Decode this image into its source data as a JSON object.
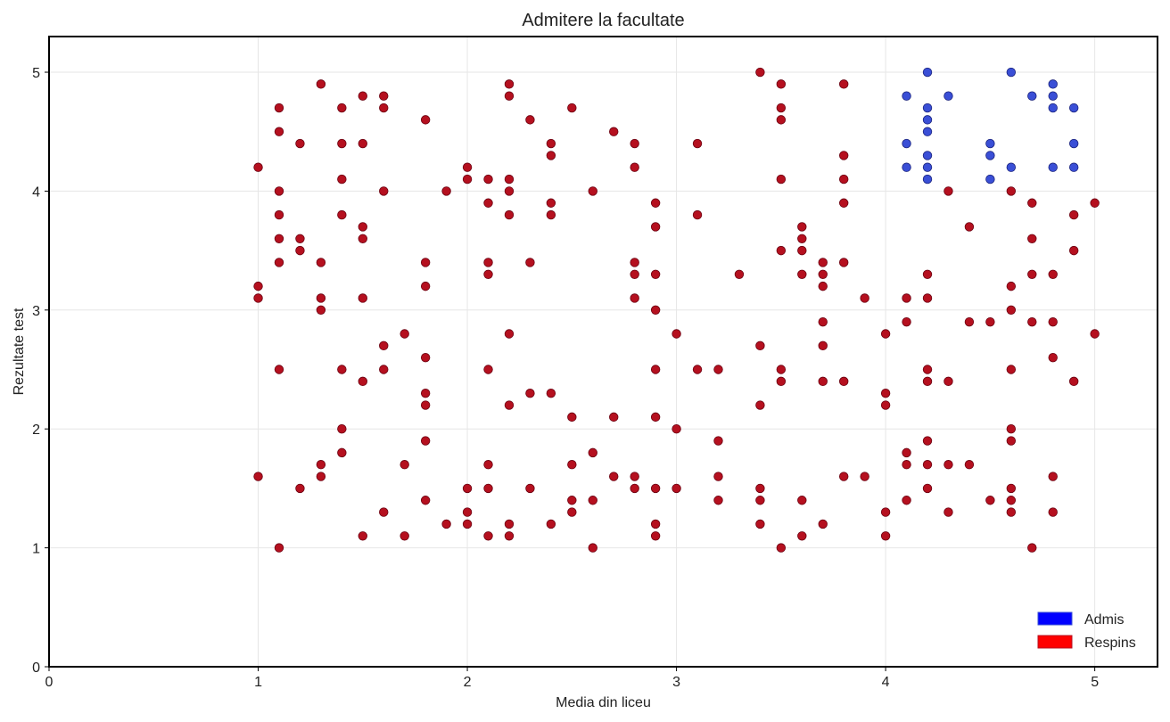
{
  "chart_data": {
    "type": "scatter",
    "title": "Admitere la facultate",
    "xlabel": "Media din liceu",
    "ylabel": "Rezultate test",
    "xlim": [
      0,
      5.3
    ],
    "ylim": [
      0,
      5.3
    ],
    "xticks": [
      0,
      1,
      2,
      3,
      4,
      5
    ],
    "yticks": [
      0,
      1,
      2,
      3,
      4,
      5
    ],
    "grid": true,
    "legend_position": "bottom-right",
    "series": [
      {
        "name": "Admis",
        "color": "#3a4fd6",
        "legend_color": "#0000ff",
        "points": [
          [
            4.1,
            4.8
          ],
          [
            4.1,
            4.4
          ],
          [
            4.1,
            4.2
          ],
          [
            4.2,
            5.0
          ],
          [
            4.2,
            4.7
          ],
          [
            4.2,
            4.6
          ],
          [
            4.2,
            4.5
          ],
          [
            4.2,
            4.3
          ],
          [
            4.2,
            4.2
          ],
          [
            4.2,
            4.1
          ],
          [
            4.3,
            4.8
          ],
          [
            4.5,
            4.4
          ],
          [
            4.5,
            4.3
          ],
          [
            4.5,
            4.1
          ],
          [
            4.6,
            5.0
          ],
          [
            4.6,
            4.2
          ],
          [
            4.7,
            4.8
          ],
          [
            4.8,
            4.9
          ],
          [
            4.8,
            4.8
          ],
          [
            4.8,
            4.7
          ],
          [
            4.8,
            4.2
          ],
          [
            4.9,
            4.7
          ],
          [
            4.9,
            4.4
          ],
          [
            4.9,
            4.2
          ]
        ]
      },
      {
        "name": "Respins",
        "color": "#b5101f",
        "legend_color": "#ff0000",
        "points": [
          [
            1.0,
            4.2
          ],
          [
            1.0,
            3.2
          ],
          [
            1.0,
            3.1
          ],
          [
            1.0,
            1.6
          ],
          [
            1.1,
            4.7
          ],
          [
            1.1,
            4.5
          ],
          [
            1.1,
            4.0
          ],
          [
            1.1,
            3.8
          ],
          [
            1.1,
            3.6
          ],
          [
            1.1,
            3.4
          ],
          [
            1.1,
            2.5
          ],
          [
            1.1,
            1.0
          ],
          [
            1.2,
            4.4
          ],
          [
            1.2,
            3.6
          ],
          [
            1.2,
            3.5
          ],
          [
            1.2,
            1.5
          ],
          [
            1.3,
            4.9
          ],
          [
            1.3,
            3.4
          ],
          [
            1.3,
            3.1
          ],
          [
            1.3,
            3.0
          ],
          [
            1.3,
            1.7
          ],
          [
            1.3,
            1.6
          ],
          [
            1.4,
            4.7
          ],
          [
            1.4,
            4.4
          ],
          [
            1.4,
            4.1
          ],
          [
            1.4,
            3.8
          ],
          [
            1.4,
            2.5
          ],
          [
            1.4,
            2.0
          ],
          [
            1.4,
            1.8
          ],
          [
            1.5,
            4.8
          ],
          [
            1.5,
            4.4
          ],
          [
            1.5,
            3.7
          ],
          [
            1.5,
            3.6
          ],
          [
            1.5,
            3.1
          ],
          [
            1.5,
            2.4
          ],
          [
            1.5,
            1.1
          ],
          [
            1.6,
            4.8
          ],
          [
            1.6,
            4.7
          ],
          [
            1.6,
            4.0
          ],
          [
            1.6,
            2.7
          ],
          [
            1.6,
            2.5
          ],
          [
            1.6,
            1.3
          ],
          [
            1.7,
            2.8
          ],
          [
            1.7,
            1.7
          ],
          [
            1.7,
            1.1
          ],
          [
            1.8,
            4.6
          ],
          [
            1.8,
            3.4
          ],
          [
            1.8,
            3.2
          ],
          [
            1.8,
            2.6
          ],
          [
            1.8,
            2.3
          ],
          [
            1.8,
            2.2
          ],
          [
            1.8,
            1.9
          ],
          [
            1.8,
            1.4
          ],
          [
            1.9,
            4.0
          ],
          [
            1.9,
            1.2
          ],
          [
            2.0,
            4.2
          ],
          [
            2.0,
            4.1
          ],
          [
            2.0,
            1.5
          ],
          [
            2.0,
            1.3
          ],
          [
            2.0,
            1.2
          ],
          [
            2.1,
            4.1
          ],
          [
            2.1,
            3.9
          ],
          [
            2.1,
            3.4
          ],
          [
            2.1,
            3.3
          ],
          [
            2.1,
            2.5
          ],
          [
            2.1,
            1.7
          ],
          [
            2.1,
            1.5
          ],
          [
            2.1,
            1.1
          ],
          [
            2.2,
            4.9
          ],
          [
            2.2,
            4.8
          ],
          [
            2.2,
            4.1
          ],
          [
            2.2,
            4.0
          ],
          [
            2.2,
            3.8
          ],
          [
            2.2,
            2.8
          ],
          [
            2.2,
            2.2
          ],
          [
            2.2,
            1.2
          ],
          [
            2.2,
            1.1
          ],
          [
            2.3,
            4.6
          ],
          [
            2.3,
            3.4
          ],
          [
            2.3,
            2.3
          ],
          [
            2.3,
            1.5
          ],
          [
            2.4,
            4.4
          ],
          [
            2.4,
            4.3
          ],
          [
            2.4,
            3.9
          ],
          [
            2.4,
            3.8
          ],
          [
            2.4,
            2.3
          ],
          [
            2.4,
            1.2
          ],
          [
            2.5,
            4.7
          ],
          [
            2.5,
            2.1
          ],
          [
            2.5,
            1.7
          ],
          [
            2.5,
            1.4
          ],
          [
            2.5,
            1.3
          ],
          [
            2.6,
            4.0
          ],
          [
            2.6,
            1.8
          ],
          [
            2.6,
            1.4
          ],
          [
            2.6,
            1.0
          ],
          [
            2.7,
            4.5
          ],
          [
            2.7,
            2.1
          ],
          [
            2.7,
            1.6
          ],
          [
            2.8,
            4.4
          ],
          [
            2.8,
            4.2
          ],
          [
            2.8,
            3.4
          ],
          [
            2.8,
            3.3
          ],
          [
            2.8,
            3.1
          ],
          [
            2.8,
            1.6
          ],
          [
            2.8,
            1.5
          ],
          [
            2.9,
            3.9
          ],
          [
            2.9,
            3.7
          ],
          [
            2.9,
            3.3
          ],
          [
            2.9,
            3.0
          ],
          [
            2.9,
            2.5
          ],
          [
            2.9,
            2.1
          ],
          [
            2.9,
            1.5
          ],
          [
            2.9,
            1.2
          ],
          [
            2.9,
            1.1
          ],
          [
            3.0,
            2.8
          ],
          [
            3.0,
            2.0
          ],
          [
            3.0,
            1.5
          ],
          [
            3.1,
            4.4
          ],
          [
            3.1,
            3.8
          ],
          [
            3.1,
            2.5
          ],
          [
            3.2,
            2.5
          ],
          [
            3.2,
            1.9
          ],
          [
            3.2,
            1.6
          ],
          [
            3.2,
            1.4
          ],
          [
            3.3,
            3.3
          ],
          [
            3.4,
            5.0
          ],
          [
            3.4,
            2.7
          ],
          [
            3.4,
            2.2
          ],
          [
            3.4,
            1.5
          ],
          [
            3.4,
            1.4
          ],
          [
            3.4,
            1.2
          ],
          [
            3.5,
            4.9
          ],
          [
            3.5,
            4.7
          ],
          [
            3.5,
            4.6
          ],
          [
            3.5,
            4.1
          ],
          [
            3.5,
            3.5
          ],
          [
            3.5,
            2.5
          ],
          [
            3.5,
            2.4
          ],
          [
            3.5,
            1.0
          ],
          [
            3.6,
            3.7
          ],
          [
            3.6,
            3.6
          ],
          [
            3.6,
            3.5
          ],
          [
            3.6,
            3.3
          ],
          [
            3.6,
            1.4
          ],
          [
            3.6,
            1.1
          ],
          [
            3.7,
            3.4
          ],
          [
            3.7,
            3.3
          ],
          [
            3.7,
            3.2
          ],
          [
            3.7,
            2.9
          ],
          [
            3.7,
            2.7
          ],
          [
            3.7,
            2.4
          ],
          [
            3.7,
            1.2
          ],
          [
            3.8,
            4.9
          ],
          [
            3.8,
            4.3
          ],
          [
            3.8,
            4.1
          ],
          [
            3.8,
            3.9
          ],
          [
            3.8,
            3.4
          ],
          [
            3.8,
            2.4
          ],
          [
            3.8,
            1.6
          ],
          [
            3.9,
            3.1
          ],
          [
            3.9,
            1.6
          ],
          [
            4.0,
            2.8
          ],
          [
            4.0,
            2.3
          ],
          [
            4.0,
            2.2
          ],
          [
            4.0,
            1.3
          ],
          [
            4.0,
            1.1
          ],
          [
            4.1,
            3.1
          ],
          [
            4.1,
            2.9
          ],
          [
            4.1,
            1.8
          ],
          [
            4.1,
            1.7
          ],
          [
            4.1,
            1.4
          ],
          [
            4.2,
            3.3
          ],
          [
            4.2,
            3.1
          ],
          [
            4.2,
            2.5
          ],
          [
            4.2,
            2.4
          ],
          [
            4.2,
            1.9
          ],
          [
            4.2,
            1.7
          ],
          [
            4.2,
            1.5
          ],
          [
            4.3,
            4.0
          ],
          [
            4.3,
            2.4
          ],
          [
            4.3,
            1.7
          ],
          [
            4.3,
            1.3
          ],
          [
            4.4,
            3.7
          ],
          [
            4.4,
            2.9
          ],
          [
            4.4,
            1.7
          ],
          [
            4.5,
            2.9
          ],
          [
            4.5,
            1.4
          ],
          [
            4.6,
            4.0
          ],
          [
            4.6,
            3.2
          ],
          [
            4.6,
            3.0
          ],
          [
            4.6,
            2.5
          ],
          [
            4.6,
            2.0
          ],
          [
            4.6,
            1.9
          ],
          [
            4.6,
            1.5
          ],
          [
            4.6,
            1.4
          ],
          [
            4.6,
            1.3
          ],
          [
            4.7,
            3.9
          ],
          [
            4.7,
            3.6
          ],
          [
            4.7,
            3.3
          ],
          [
            4.7,
            2.9
          ],
          [
            4.7,
            1.0
          ],
          [
            4.8,
            3.3
          ],
          [
            4.8,
            2.9
          ],
          [
            4.8,
            2.6
          ],
          [
            4.8,
            1.6
          ],
          [
            4.8,
            1.3
          ],
          [
            4.9,
            3.8
          ],
          [
            4.9,
            3.5
          ],
          [
            4.9,
            2.4
          ],
          [
            5.0,
            3.9
          ],
          [
            5.0,
            2.8
          ]
        ]
      }
    ]
  }
}
